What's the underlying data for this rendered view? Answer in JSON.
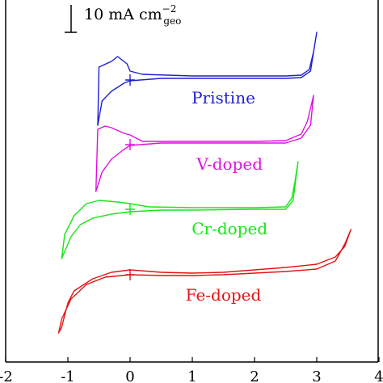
{
  "chart_data": {
    "type": "line",
    "title": "",
    "xlabel": "",
    "ylabel": "",
    "xlim": [
      -2,
      4
    ],
    "x_ticks": [
      "-2",
      "-1",
      "0",
      "1",
      "2",
      "3",
      "4"
    ],
    "grid": false,
    "scale_bar": {
      "text": "10 mA cm",
      "sub": "geo",
      "sup": "−2"
    },
    "series": [
      {
        "name": "Pristine",
        "color": "#1f1fd6",
        "upper": [
          [
            -0.5,
            83
          ],
          [
            -0.3,
            76
          ],
          [
            -0.2,
            70
          ],
          [
            -0.05,
            79
          ],
          [
            0,
            88
          ],
          [
            0.2,
            92
          ],
          [
            1.0,
            94
          ],
          [
            2.0,
            94
          ],
          [
            2.5,
            94
          ],
          [
            2.75,
            93
          ],
          [
            2.88,
            86
          ],
          [
            2.95,
            64
          ],
          [
            3.0,
            40
          ]
        ],
        "lower": [
          [
            -0.52,
            155
          ],
          [
            -0.45,
            125
          ],
          [
            -0.3,
            113
          ],
          [
            -0.1,
            103
          ],
          [
            0.0,
            100
          ],
          [
            0.5,
            97
          ],
          [
            1.0,
            97
          ],
          [
            2.0,
            97
          ],
          [
            2.5,
            97
          ],
          [
            2.75,
            96
          ],
          [
            2.9,
            88
          ],
          [
            3.0,
            40
          ]
        ]
      },
      {
        "name": "V-doped",
        "color": "#e010e0",
        "upper": [
          [
            -0.52,
            160
          ],
          [
            -0.4,
            156
          ],
          [
            -0.3,
            158
          ],
          [
            -0.1,
            165
          ],
          [
            0.0,
            167
          ],
          [
            0.2,
            175
          ],
          [
            1.0,
            175
          ],
          [
            2.0,
            175
          ],
          [
            2.5,
            174
          ],
          [
            2.75,
            166
          ],
          [
            2.85,
            150
          ],
          [
            2.95,
            118
          ]
        ],
        "lower": [
          [
            -0.55,
            237
          ],
          [
            -0.45,
            213
          ],
          [
            -0.3,
            197
          ],
          [
            -0.1,
            185
          ],
          [
            0.0,
            180
          ],
          [
            0.5,
            177
          ],
          [
            1.0,
            177
          ],
          [
            2.0,
            177
          ],
          [
            2.5,
            177
          ],
          [
            2.75,
            171
          ],
          [
            2.9,
            155
          ],
          [
            2.95,
            118
          ]
        ]
      },
      {
        "name": "Cr-doped",
        "color": "#16e616",
        "upper": [
          [
            -1.05,
            290
          ],
          [
            -0.9,
            267
          ],
          [
            -0.7,
            252
          ],
          [
            -0.5,
            248
          ],
          [
            -0.2,
            250
          ],
          [
            0.0,
            252
          ],
          [
            0.3,
            256
          ],
          [
            1.0,
            257
          ],
          [
            2.0,
            257
          ],
          [
            2.5,
            256
          ],
          [
            2.6,
            245
          ],
          [
            2.65,
            225
          ],
          [
            2.7,
            200
          ]
        ],
        "lower": [
          [
            -1.1,
            320
          ],
          [
            -0.95,
            293
          ],
          [
            -0.8,
            278
          ],
          [
            -0.6,
            270
          ],
          [
            -0.3,
            265
          ],
          [
            0.0,
            262
          ],
          [
            0.5,
            260
          ],
          [
            1.0,
            260
          ],
          [
            2.0,
            259
          ],
          [
            2.5,
            259
          ],
          [
            2.62,
            248
          ],
          [
            2.7,
            200
          ]
        ]
      },
      {
        "name": "Fe-doped",
        "color": "#e41414",
        "upper": [
          [
            -1.1,
            405
          ],
          [
            -1.05,
            390
          ],
          [
            -1.0,
            375
          ],
          [
            -0.9,
            360
          ],
          [
            -0.6,
            345
          ],
          [
            -0.3,
            337
          ],
          [
            0.0,
            334
          ],
          [
            0.5,
            337
          ],
          [
            1.0,
            338
          ],
          [
            1.5,
            337
          ],
          [
            2.0,
            334
          ],
          [
            2.5,
            331
          ],
          [
            3.0,
            327
          ],
          [
            3.3,
            318
          ],
          [
            3.45,
            305
          ],
          [
            3.55,
            284
          ]
        ],
        "lower": [
          [
            -1.15,
            412
          ],
          [
            -1.1,
            395
          ],
          [
            -0.95,
            370
          ],
          [
            -0.7,
            352
          ],
          [
            -0.4,
            343
          ],
          [
            0.0,
            340
          ],
          [
            0.5,
            341
          ],
          [
            1.0,
            341
          ],
          [
            1.5,
            340
          ],
          [
            2.0,
            338
          ],
          [
            2.5,
            336
          ],
          [
            3.0,
            333
          ],
          [
            3.3,
            323
          ],
          [
            3.45,
            302
          ],
          [
            3.55,
            284
          ]
        ]
      }
    ]
  }
}
